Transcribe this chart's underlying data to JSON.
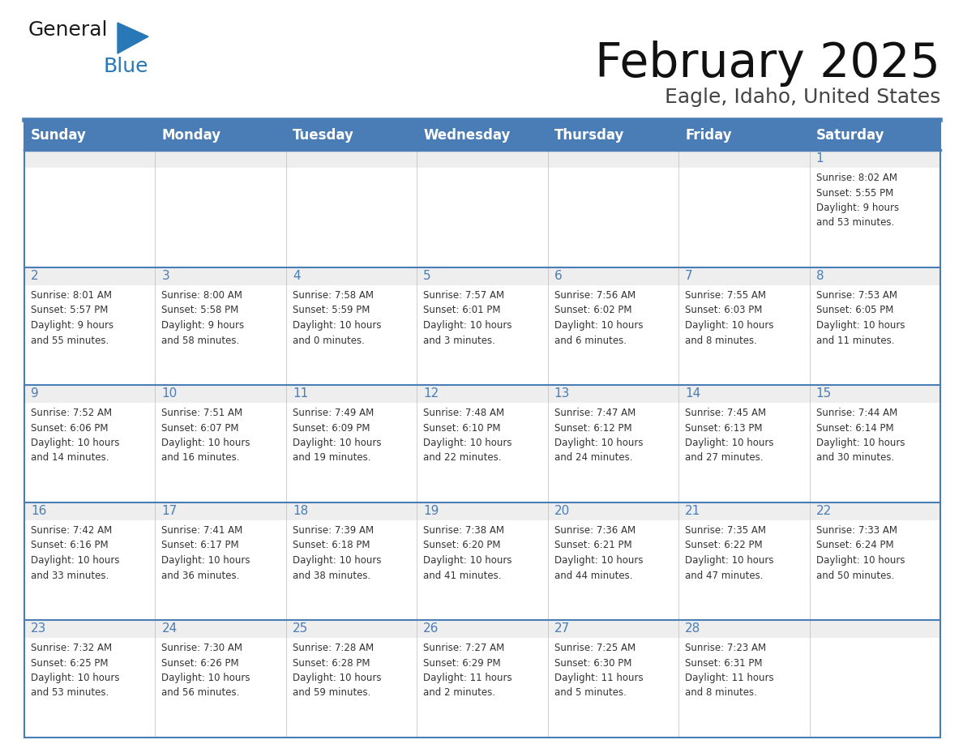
{
  "title": "February 2025",
  "subtitle": "Eagle, Idaho, United States",
  "header_bg_color": "#4a7db5",
  "header_text_color": "#ffffff",
  "cell_bg_gray": "#eeeeee",
  "cell_bg_white": "#ffffff",
  "day_number_color": "#4a7db5",
  "cell_text_color": "#333333",
  "border_color": "#4a7db5",
  "logo_text_color": "#1a1a1a",
  "logo_blue_color": "#2878b8",
  "days_of_week": [
    "Sunday",
    "Monday",
    "Tuesday",
    "Wednesday",
    "Thursday",
    "Friday",
    "Saturday"
  ],
  "weeks": [
    [
      {
        "day": null,
        "info": null
      },
      {
        "day": null,
        "info": null
      },
      {
        "day": null,
        "info": null
      },
      {
        "day": null,
        "info": null
      },
      {
        "day": null,
        "info": null
      },
      {
        "day": null,
        "info": null
      },
      {
        "day": 1,
        "info": "Sunrise: 8:02 AM\nSunset: 5:55 PM\nDaylight: 9 hours\nand 53 minutes."
      }
    ],
    [
      {
        "day": 2,
        "info": "Sunrise: 8:01 AM\nSunset: 5:57 PM\nDaylight: 9 hours\nand 55 minutes."
      },
      {
        "day": 3,
        "info": "Sunrise: 8:00 AM\nSunset: 5:58 PM\nDaylight: 9 hours\nand 58 minutes."
      },
      {
        "day": 4,
        "info": "Sunrise: 7:58 AM\nSunset: 5:59 PM\nDaylight: 10 hours\nand 0 minutes."
      },
      {
        "day": 5,
        "info": "Sunrise: 7:57 AM\nSunset: 6:01 PM\nDaylight: 10 hours\nand 3 minutes."
      },
      {
        "day": 6,
        "info": "Sunrise: 7:56 AM\nSunset: 6:02 PM\nDaylight: 10 hours\nand 6 minutes."
      },
      {
        "day": 7,
        "info": "Sunrise: 7:55 AM\nSunset: 6:03 PM\nDaylight: 10 hours\nand 8 minutes."
      },
      {
        "day": 8,
        "info": "Sunrise: 7:53 AM\nSunset: 6:05 PM\nDaylight: 10 hours\nand 11 minutes."
      }
    ],
    [
      {
        "day": 9,
        "info": "Sunrise: 7:52 AM\nSunset: 6:06 PM\nDaylight: 10 hours\nand 14 minutes."
      },
      {
        "day": 10,
        "info": "Sunrise: 7:51 AM\nSunset: 6:07 PM\nDaylight: 10 hours\nand 16 minutes."
      },
      {
        "day": 11,
        "info": "Sunrise: 7:49 AM\nSunset: 6:09 PM\nDaylight: 10 hours\nand 19 minutes."
      },
      {
        "day": 12,
        "info": "Sunrise: 7:48 AM\nSunset: 6:10 PM\nDaylight: 10 hours\nand 22 minutes."
      },
      {
        "day": 13,
        "info": "Sunrise: 7:47 AM\nSunset: 6:12 PM\nDaylight: 10 hours\nand 24 minutes."
      },
      {
        "day": 14,
        "info": "Sunrise: 7:45 AM\nSunset: 6:13 PM\nDaylight: 10 hours\nand 27 minutes."
      },
      {
        "day": 15,
        "info": "Sunrise: 7:44 AM\nSunset: 6:14 PM\nDaylight: 10 hours\nand 30 minutes."
      }
    ],
    [
      {
        "day": 16,
        "info": "Sunrise: 7:42 AM\nSunset: 6:16 PM\nDaylight: 10 hours\nand 33 minutes."
      },
      {
        "day": 17,
        "info": "Sunrise: 7:41 AM\nSunset: 6:17 PM\nDaylight: 10 hours\nand 36 minutes."
      },
      {
        "day": 18,
        "info": "Sunrise: 7:39 AM\nSunset: 6:18 PM\nDaylight: 10 hours\nand 38 minutes."
      },
      {
        "day": 19,
        "info": "Sunrise: 7:38 AM\nSunset: 6:20 PM\nDaylight: 10 hours\nand 41 minutes."
      },
      {
        "day": 20,
        "info": "Sunrise: 7:36 AM\nSunset: 6:21 PM\nDaylight: 10 hours\nand 44 minutes."
      },
      {
        "day": 21,
        "info": "Sunrise: 7:35 AM\nSunset: 6:22 PM\nDaylight: 10 hours\nand 47 minutes."
      },
      {
        "day": 22,
        "info": "Sunrise: 7:33 AM\nSunset: 6:24 PM\nDaylight: 10 hours\nand 50 minutes."
      }
    ],
    [
      {
        "day": 23,
        "info": "Sunrise: 7:32 AM\nSunset: 6:25 PM\nDaylight: 10 hours\nand 53 minutes."
      },
      {
        "day": 24,
        "info": "Sunrise: 7:30 AM\nSunset: 6:26 PM\nDaylight: 10 hours\nand 56 minutes."
      },
      {
        "day": 25,
        "info": "Sunrise: 7:28 AM\nSunset: 6:28 PM\nDaylight: 10 hours\nand 59 minutes."
      },
      {
        "day": 26,
        "info": "Sunrise: 7:27 AM\nSunset: 6:29 PM\nDaylight: 11 hours\nand 2 minutes."
      },
      {
        "day": 27,
        "info": "Sunrise: 7:25 AM\nSunset: 6:30 PM\nDaylight: 11 hours\nand 5 minutes."
      },
      {
        "day": 28,
        "info": "Sunrise: 7:23 AM\nSunset: 6:31 PM\nDaylight: 11 hours\nand 8 minutes."
      },
      {
        "day": null,
        "info": null
      }
    ]
  ]
}
